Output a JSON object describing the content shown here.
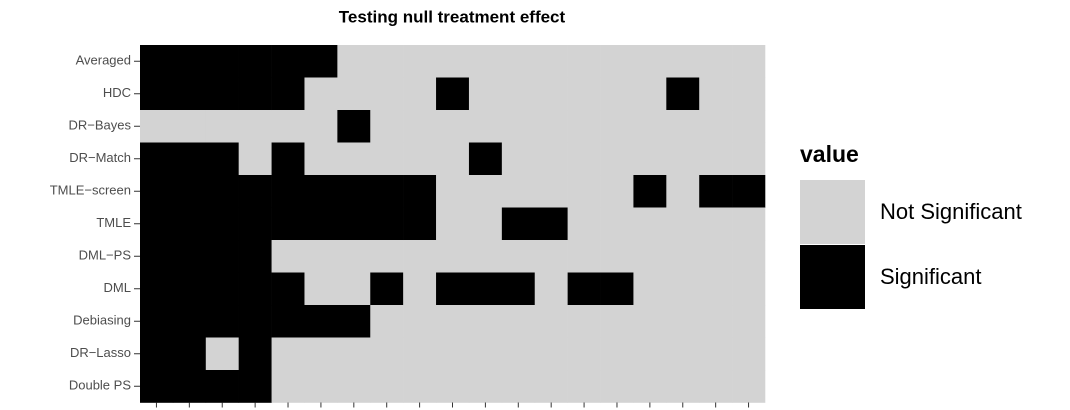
{
  "chart_data": {
    "type": "heatmap",
    "title": "Testing null treatment effect",
    "rows": [
      "Averaged",
      "HDC",
      "DR−Bayes",
      "DR−Match",
      "TMLE−screen",
      "TMLE",
      "DML−PS",
      "DML",
      "Debiasing",
      "DR−Lasso",
      "Double PS"
    ],
    "categories": [
      null,
      null,
      null,
      null,
      null,
      null,
      null,
      null,
      null,
      null,
      null,
      null,
      null,
      null,
      null,
      null,
      null,
      null,
      null
    ],
    "values": [
      [
        1,
        1,
        1,
        1,
        1,
        1,
        0,
        0,
        0,
        0,
        0,
        0,
        0,
        0,
        0,
        0,
        0,
        0,
        0
      ],
      [
        1,
        1,
        1,
        1,
        1,
        0,
        0,
        0,
        0,
        1,
        0,
        0,
        0,
        0,
        0,
        0,
        1,
        0,
        0
      ],
      [
        0,
        0,
        0,
        0,
        0,
        0,
        1,
        0,
        0,
        0,
        0,
        0,
        0,
        0,
        0,
        0,
        0,
        0,
        0
      ],
      [
        1,
        1,
        1,
        0,
        1,
        0,
        0,
        0,
        0,
        0,
        1,
        0,
        0,
        0,
        0,
        0,
        0,
        0,
        0
      ],
      [
        1,
        1,
        1,
        1,
        1,
        1,
        1,
        1,
        1,
        0,
        0,
        0,
        0,
        0,
        0,
        1,
        0,
        1,
        1
      ],
      [
        1,
        1,
        1,
        1,
        1,
        1,
        1,
        1,
        1,
        0,
        0,
        1,
        1,
        0,
        0,
        0,
        0,
        0,
        0
      ],
      [
        1,
        1,
        1,
        1,
        0,
        0,
        0,
        0,
        0,
        0,
        0,
        0,
        0,
        0,
        0,
        0,
        0,
        0,
        0
      ],
      [
        1,
        1,
        1,
        1,
        1,
        0,
        0,
        1,
        0,
        1,
        1,
        1,
        0,
        1,
        1,
        0,
        0,
        0,
        0
      ],
      [
        1,
        1,
        1,
        1,
        1,
        1,
        1,
        0,
        0,
        0,
        0,
        0,
        0,
        0,
        0,
        0,
        0,
        0,
        0
      ],
      [
        1,
        1,
        0,
        1,
        0,
        0,
        0,
        0,
        0,
        0,
        0,
        0,
        0,
        0,
        0,
        0,
        0,
        0,
        0
      ],
      [
        1,
        1,
        1,
        1,
        0,
        0,
        0,
        0,
        0,
        0,
        0,
        0,
        0,
        0,
        0,
        0,
        0,
        0,
        0
      ]
    ],
    "legend_title": "value",
    "levels": [
      "Not Significant",
      "Significant"
    ],
    "colors": [
      "#d3d3d3",
      "#000000"
    ]
  }
}
